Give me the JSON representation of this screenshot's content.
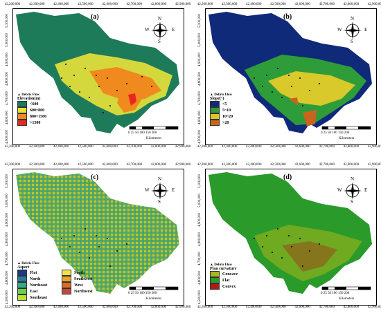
{
  "x_ticks": [
    "42,200,000",
    "42,300,000",
    "42,400,000",
    "42,500,000",
    "42,600,000",
    "42,700,000",
    "42,800,000",
    "42,900,000"
  ],
  "y_ticks": [
    "5,100,000",
    "5,000,000",
    "4,900,000",
    "4,800,000",
    "4,700,000",
    "4,600,000",
    "4,500,000"
  ],
  "compass": {
    "n": "N",
    "s": "S",
    "e": "E",
    "w": "W"
  },
  "scale": {
    "numbers": "0  25 50     100     150    200",
    "unit": "Kilometers"
  },
  "debris_label": "▲ Debris Flow",
  "panels": {
    "a": {
      "label": "(a)",
      "legend_title": "Elevation(m)",
      "items": [
        {
          "label": "<600",
          "color": "#1e7b5a"
        },
        {
          "label": "600~800",
          "color": "#e8e23a"
        },
        {
          "label": "800~1500",
          "color": "#f08a1e"
        },
        {
          "label": ">1500",
          "color": "#e8281e"
        }
      ]
    },
    "b": {
      "label": "(b)",
      "legend_title": "Slope(°)",
      "items": [
        {
          "label": "<5",
          "color": "#102a7a"
        },
        {
          "label": "5~10",
          "color": "#2f9c3a"
        },
        {
          "label": "10~20",
          "color": "#d9c92a"
        },
        {
          "label": ">20",
          "color": "#c9641e"
        }
      ]
    },
    "c": {
      "label": "(c)",
      "legend_title": "Aspect",
      "items": [
        {
          "label": "Flat",
          "color": "#1a3a8a"
        },
        {
          "label": "South",
          "color": "#f0e04a"
        },
        {
          "label": "North",
          "color": "#2a7aa0"
        },
        {
          "label": "Southwest",
          "color": "#e8a62a"
        },
        {
          "label": "Northeast",
          "color": "#3aa68a"
        },
        {
          "label": "West",
          "color": "#d86a2a"
        },
        {
          "label": "East",
          "color": "#6ad04a"
        },
        {
          "label": "Northwest",
          "color": "#c04a3a"
        },
        {
          "label": "Southeast",
          "color": "#b8e03a"
        }
      ]
    },
    "d": {
      "label": "(d)",
      "legend_title": "Plan curvature",
      "items": [
        {
          "label": "Concave",
          "color": "#a8b81a"
        },
        {
          "label": "Flat",
          "color": "#2a9a2a"
        },
        {
          "label": "Convex",
          "color": "#b01818"
        }
      ]
    }
  }
}
